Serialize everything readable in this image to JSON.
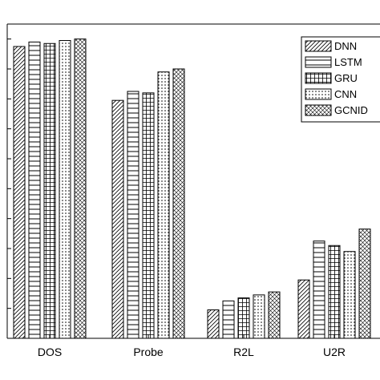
{
  "chart_data": {
    "type": "bar",
    "title": "",
    "xlabel": "",
    "ylabel": "",
    "categories": [
      "DOS",
      "Probe",
      "R2L",
      "U2R"
    ],
    "series": [
      {
        "name": "DNN",
        "pattern": "diag-hatch",
        "values": [
          0.975,
          0.795,
          0.095,
          0.195
        ]
      },
      {
        "name": "LSTM",
        "pattern": "horiz-lines",
        "values": [
          0.99,
          0.825,
          0.125,
          0.325
        ]
      },
      {
        "name": "GRU",
        "pattern": "grid",
        "values": [
          0.985,
          0.82,
          0.135,
          0.31
        ]
      },
      {
        "name": "CNN",
        "pattern": "dots",
        "values": [
          0.995,
          0.89,
          0.145,
          0.29
        ]
      },
      {
        "name": "GCNID",
        "pattern": "crosshatch",
        "values": [
          1.0,
          0.9,
          0.155,
          0.365
        ]
      }
    ],
    "ylim": [
      0,
      1.05
    ],
    "grid": false,
    "legend_position": "top-right",
    "colors": {
      "bar_stroke": "#000000",
      "bar_fill": "#ffffff",
      "axis": "#000000",
      "background": "#ffffff"
    }
  }
}
